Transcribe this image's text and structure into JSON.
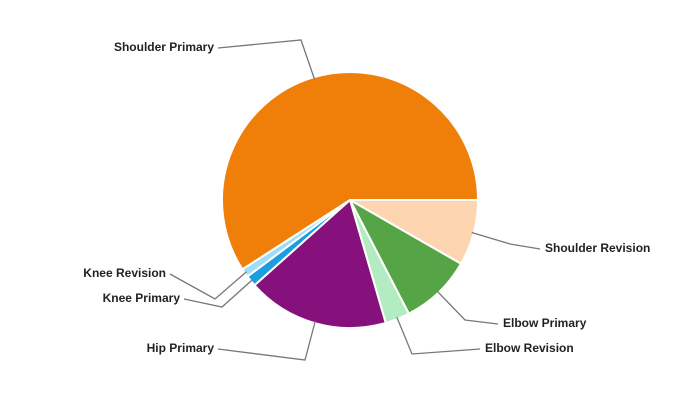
{
  "chart_data": {
    "type": "pie",
    "categories": [
      "Shoulder Revision",
      "Elbow Primary",
      "Elbow Revision",
      "Hip Primary",
      "Knee Primary",
      "Knee Revision",
      "Shoulder Primary"
    ],
    "values": [
      8.3,
      9.1,
      3.1,
      17.9,
      1.4,
      1.1,
      59.1
    ],
    "colors": [
      "#fdd5b1",
      "#55a546",
      "#b3ecc0",
      "#87117c",
      "#1a9ee0",
      "#9fdcf5",
      "#f07f09"
    ]
  }
}
